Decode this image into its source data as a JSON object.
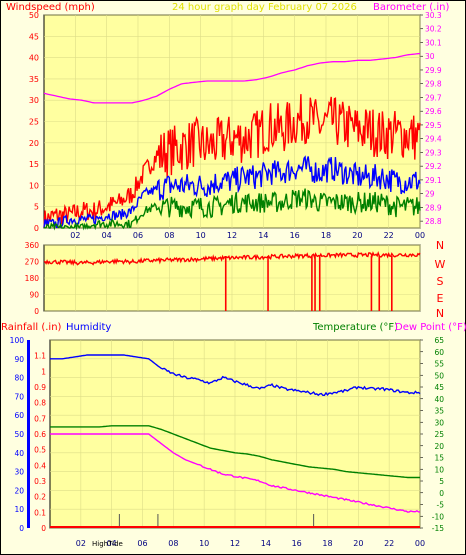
{
  "header": {
    "left_title": "Windspeed (mph)",
    "center_title": "24 hour graph day    February 07 2026",
    "right_title": "Barometer (.in)"
  },
  "lower_header": {
    "rainfall_label": "Rainfall (.in)",
    "humidity_label": "Humidity",
    "temperature_label": "Temperature (°F)",
    "dewpoint_label": "Dew Point (°F)"
  },
  "footer": {
    "high_tide_label": "HighTide"
  },
  "colors": {
    "background": "#ffffe0",
    "panel_background": "#ffffa0",
    "wind_gust": "#ff0000",
    "wind_avg": "#0000ff",
    "wind_low": "#008000",
    "barometer": "#ff00ff",
    "direction": "#ff0000",
    "humidity": "#0000ff",
    "temperature": "#008000",
    "dewpoint": "#ff00ff",
    "rainfall": "#ff0000",
    "axis_left_top": "#ff0000",
    "axis_right_top": "#ff00ff",
    "title_center": "#e0e000",
    "humidity_bar": "#0000ff",
    "rain_axis": "#ff0000"
  },
  "chart_data": [
    {
      "type": "line",
      "panel": "wind-barometer",
      "x_tick_labels": [
        "02",
        "04",
        "06",
        "08",
        "10",
        "12",
        "14",
        "16",
        "18",
        "20",
        "22",
        "00"
      ],
      "y_left_ticks": [
        "0",
        "5",
        "10",
        "15",
        "20",
        "25",
        "30",
        "35",
        "40",
        "45",
        "50"
      ],
      "y_right_ticks": [
        "28.8",
        "28.9",
        "29",
        "29.1",
        "29.2",
        "29.3",
        "29.4",
        "29.5",
        "29.6",
        "29.7",
        "29.8",
        "29.9",
        "30",
        "30.1",
        "30.2",
        "30.3"
      ],
      "ylim_left": [
        0,
        50
      ],
      "ylim_right": [
        28.75,
        30.3
      ],
      "grid": true,
      "series": [
        {
          "key": "barometer",
          "values": [
            29.73,
            29.71,
            29.69,
            29.68,
            29.66,
            29.66,
            29.66,
            29.66,
            29.68,
            29.71,
            29.76,
            29.8,
            29.81,
            29.82,
            29.82,
            29.82,
            29.82,
            29.83,
            29.85,
            29.88,
            29.9,
            29.93,
            29.95,
            29.96,
            29.96,
            29.97,
            29.97,
            29.98,
            29.99,
            30.01,
            30.02
          ]
        },
        {
          "key": "wind_gust",
          "values": [
            2,
            3,
            3,
            4,
            4,
            5,
            6,
            8,
            13,
            17,
            18,
            19,
            20,
            19,
            20,
            21,
            21,
            22,
            24,
            23,
            25,
            26,
            24,
            25,
            24,
            23,
            23,
            22,
            22,
            22,
            21
          ]
        },
        {
          "key": "wind_avg",
          "values": [
            1,
            1,
            2,
            2,
            2,
            3,
            3,
            4,
            8,
            9,
            10,
            10,
            10,
            10,
            11,
            11,
            12,
            12,
            13,
            13,
            14,
            14,
            13,
            14,
            13,
            12,
            12,
            12,
            11,
            11,
            11
          ]
        },
        {
          "key": "wind_low",
          "values": [
            0,
            0,
            0,
            0,
            1,
            1,
            1,
            1,
            4,
            5,
            5,
            5,
            5,
            5,
            5,
            6,
            6,
            6,
            6,
            6,
            7,
            7,
            6,
            6,
            6,
            6,
            6,
            6,
            5,
            5,
            5
          ]
        }
      ]
    },
    {
      "type": "scatter",
      "panel": "wind-direction",
      "y_left_ticks": [
        "0",
        "90",
        "180",
        "270",
        "360"
      ],
      "y_right_labels": [
        "N",
        "W",
        "S",
        "E",
        "N"
      ],
      "ylim": [
        0,
        360
      ],
      "series": [
        {
          "key": "direction",
          "values": [
            270,
            268,
            265,
            262,
            265,
            270,
            272,
            268,
            274,
            276,
            278,
            280,
            282,
            285,
            288,
            290,
            292,
            294,
            296,
            298,
            300,
            302,
            303,
            304,
            305,
            305,
            306,
            306,
            306,
            307,
            307
          ]
        }
      ],
      "spikes_to_zero_hours": [
        11.6,
        14.3,
        17.1,
        17.3,
        17.6,
        20.9,
        21.4,
        22.2
      ]
    },
    {
      "type": "line",
      "panel": "humidity-temperature",
      "x_tick_labels": [
        "02",
        "04",
        "06",
        "08",
        "10",
        "12",
        "14",
        "16",
        "18",
        "20",
        "22",
        "00"
      ],
      "y_humidity_ticks": [
        "0",
        "10",
        "20",
        "30",
        "40",
        "50",
        "60",
        "70",
        "80",
        "90",
        "100"
      ],
      "y_rain_ticks": [
        "0",
        "0.1",
        "0.2",
        "0.3",
        "0.4",
        "0.5",
        "0.6",
        "0.7",
        "0.8",
        "0.9",
        "1",
        "1.1"
      ],
      "y_temp_ticks": [
        "-15",
        "-10",
        "-5",
        "0",
        "5",
        "10",
        "15",
        "20",
        "25",
        "30",
        "35",
        "40",
        "45",
        "50",
        "55",
        "60",
        "65"
      ],
      "ylim_humidity": [
        0,
        100
      ],
      "ylim_temperature": [
        -15,
        65
      ],
      "high_tide_hours": [
        4.5,
        7.0,
        17.1
      ],
      "series": [
        {
          "key": "humidity",
          "values": [
            90,
            90,
            91,
            92,
            92,
            92,
            92,
            91,
            90,
            85,
            82,
            80,
            79,
            77,
            80,
            78,
            76,
            74,
            76,
            74,
            73,
            72,
            71,
            72,
            73,
            75,
            74,
            74,
            73,
            72,
            72
          ]
        },
        {
          "key": "temperature",
          "values": [
            28,
            28,
            28,
            28,
            28,
            28.5,
            28.5,
            28.5,
            28.5,
            27,
            25,
            23,
            21,
            19,
            18,
            17,
            16.5,
            15.5,
            14,
            13,
            12,
            11,
            10.5,
            10,
            9,
            8.5,
            8,
            7.5,
            7,
            6.5,
            6.5
          ]
        },
        {
          "key": "dewpoint",
          "values": [
            25,
            25,
            25,
            25,
            25,
            25,
            25,
            25,
            25,
            21,
            17,
            14,
            12,
            10,
            8,
            7,
            6,
            5,
            3,
            2,
            1,
            0,
            -1,
            -2,
            -3,
            -4,
            -5,
            -6,
            -7,
            -8,
            -8
          ]
        },
        {
          "key": "rainfall",
          "values": [
            0,
            0,
            0,
            0,
            0,
            0,
            0,
            0,
            0,
            0,
            0,
            0,
            0,
            0,
            0,
            0,
            0,
            0,
            0,
            0,
            0,
            0,
            0,
            0,
            0,
            0,
            0,
            0,
            0,
            0,
            0
          ]
        }
      ]
    }
  ]
}
